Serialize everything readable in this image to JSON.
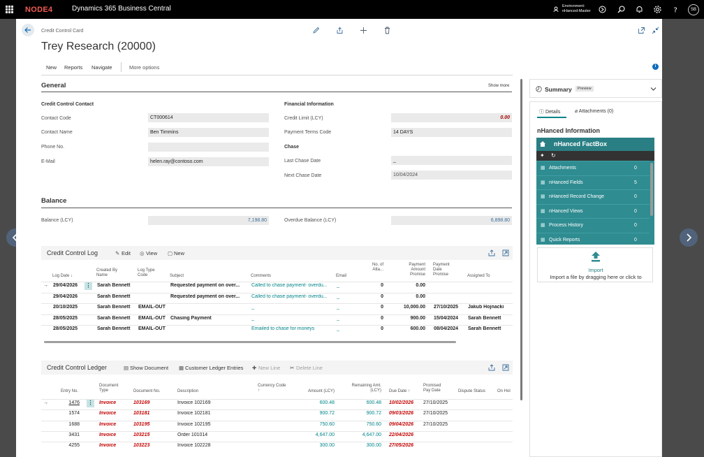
{
  "app": {
    "logo": "NODE4",
    "title": "Dynamics 365 Business Central",
    "env_label": "Environment:",
    "env_name": "nHanced-Master",
    "avatar": "SB"
  },
  "page": {
    "breadcrumb": "Credit Control Card",
    "title": "Trey Research (20000)"
  },
  "actions": {
    "new": "New",
    "reports": "Reports",
    "navigate": "Navigate",
    "more": "More options"
  },
  "general": {
    "title": "General",
    "show_more": "Show more",
    "contact_group": "Credit Control Contact",
    "financial_group": "Financial Information",
    "chase_group": "Chase",
    "contact_code_label": "Contact Code",
    "contact_code": "CT000614",
    "contact_name_label": "Contact Name",
    "contact_name": "Ben Timmins",
    "phone_label": "Phone No.",
    "phone": "",
    "email_label": "E-Mail",
    "email": "helen.ray@contoso.com",
    "credit_limit_label": "Credit Limit (LCY)",
    "credit_limit": "0.00",
    "payment_terms_label": "Payment Terms Code",
    "payment_terms": "14 DAYS",
    "last_chase_label": "Last Chase Date",
    "last_chase": "_",
    "next_chase_label": "Next Chase Date",
    "next_chase": "10/04/2024"
  },
  "balance": {
    "title": "Balance",
    "balance_label": "Balance (LCY)",
    "balance": "7,198.80",
    "overdue_label": "Overdue Balance (LCY)",
    "overdue": "6,898.80"
  },
  "log": {
    "title": "Credit Control Log",
    "edit": "Edit",
    "view": "View",
    "new": "New",
    "headers": {
      "log_date": "Log Date",
      "created_by": "Created By Name",
      "log_type": "Log Type Code",
      "subject": "Subject",
      "comments": "Comments",
      "email": "Email",
      "no_attach": "No. of Atta...",
      "pay_amount": "Payment Amount Promise",
      "pay_date": "Payment Date Promise",
      "assigned": "Assigned To"
    },
    "rows": [
      {
        "date": "29/04/2026",
        "by": "Sarah Bennett",
        "type": "",
        "subject": "Requested payment on over...",
        "comments": "Called to chase payment- overdu...",
        "email": "_",
        "attach": "0",
        "amount": "0.00",
        "pdate": "",
        "assigned": ""
      },
      {
        "date": "29/04/2026",
        "by": "Sarah Bennett",
        "type": "",
        "subject": "Requested payment on over...",
        "comments": "Called to chase payment- overdu...",
        "email": "_",
        "attach": "0",
        "amount": "0.00",
        "pdate": "",
        "assigned": ""
      },
      {
        "date": "20/10/2025",
        "by": "Sarah Bennett",
        "type": "EMAIL-OUT",
        "subject": "",
        "comments": "_",
        "email": "_",
        "attach": "0",
        "amount": "10,000.00",
        "pdate": "27/10/2025",
        "assigned": "Jakub Hojnacki"
      },
      {
        "date": "28/05/2025",
        "by": "Sarah Bennett",
        "type": "EMAIL-OUT",
        "subject": "Chasing Payment",
        "comments": "_",
        "email": "_",
        "attach": "0",
        "amount": "900.00",
        "pdate": "15/04/2024",
        "assigned": "Sarah Bennett"
      },
      {
        "date": "28/05/2025",
        "by": "Sarah Bennett",
        "type": "EMAIL-OUT",
        "subject": "",
        "comments": "Emailed to chase for moneys",
        "email": "_",
        "attach": "0",
        "amount": "600.00",
        "pdate": "08/04/2024",
        "assigned": "Sarah Bennett"
      }
    ]
  },
  "ledger": {
    "title": "Credit Control Ledger",
    "show_doc": "Show Document",
    "cust_entries": "Customer Ledger Entries",
    "new_line": "New Line",
    "delete_line": "Delete Line",
    "headers": {
      "entry": "Entry No.",
      "doc_type": "Document Type",
      "doc_no": "Document No.",
      "desc": "Description",
      "currency": "Currency Code",
      "amount": "Amount (LCY)",
      "remaining": "Remaining Amt. (LCY)",
      "due": "Due Date",
      "promised": "Promised Pay Date",
      "dispute": "Dispute Status",
      "onhold": "On Hol"
    },
    "rows": [
      {
        "entry": "1476",
        "type": "Invoice",
        "no": "103169",
        "desc": "Invoice 102169",
        "amount": "600.48",
        "remaining": "600.48",
        "due": "10/02/2026",
        "promised": "27/10/2025"
      },
      {
        "entry": "1574",
        "type": "Invoice",
        "no": "103181",
        "desc": "Invoice 102181",
        "amount": "900.72",
        "remaining": "900.72",
        "due": "09/03/2026",
        "promised": "27/10/2025"
      },
      {
        "entry": "1688",
        "type": "Invoice",
        "no": "103195",
        "desc": "Invoice 102195",
        "amount": "750.60",
        "remaining": "750.60",
        "due": "09/04/2026",
        "promised": "27/10/2025"
      },
      {
        "entry": "3431",
        "type": "Invoice",
        "no": "103215",
        "desc": "Order 101014",
        "amount": "4,647.00",
        "remaining": "4,647.00",
        "due": "22/04/2026",
        "promised": ""
      },
      {
        "entry": "4255",
        "type": "Invoice",
        "no": "103223",
        "desc": "Invoice 102228",
        "amount": "300.00",
        "remaining": "300.00",
        "due": "27/05/2026",
        "promised": ""
      }
    ]
  },
  "factbox": {
    "summary": "Summary",
    "preview": "Preview",
    "details_tab": "Details",
    "attachments_tab": "Attachments (0)",
    "info_title": "nHanced Information",
    "fb_title": "nHanced FactBox",
    "items": [
      {
        "label": "Attachments",
        "count": "0"
      },
      {
        "label": "nHanced Fields",
        "count": "5"
      },
      {
        "label": "nHanced Record Change",
        "count": "0"
      },
      {
        "label": "nHanced Views",
        "count": "0"
      },
      {
        "label": "Process History",
        "count": "0"
      },
      {
        "label": "Quick Reports",
        "count": "0"
      }
    ],
    "import_label": "Import",
    "import_hint": "Import a file by dragging here or click to"
  }
}
